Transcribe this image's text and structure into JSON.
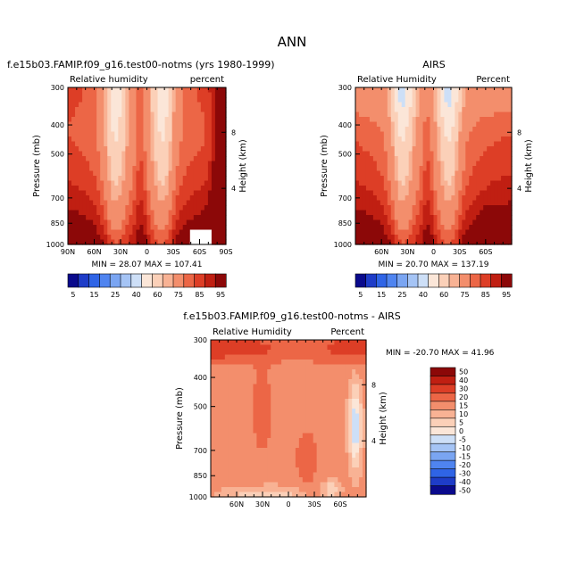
{
  "page_title": "ANN",
  "palettes": {
    "absolute": [
      "#0a0a8c",
      "#1e3cc8",
      "#2f64e6",
      "#4f84f0",
      "#7aa5f2",
      "#a5c4f5",
      "#cddff7",
      "#fbe6d8",
      "#fbd0b8",
      "#f8b294",
      "#f38e6c",
      "#ec6646",
      "#dd3e26",
      "#c01f12",
      "#8c0808"
    ],
    "diff": [
      "#0a0a8c",
      "#1e3cc8",
      "#2f64e6",
      "#4f84f0",
      "#7aa5f2",
      "#a5c4f5",
      "#cddff7",
      "#fbe6d8",
      "#fbd0b8",
      "#f8b294",
      "#f38e6c",
      "#ec6646",
      "#dd3e26",
      "#c01f12",
      "#8c0808"
    ]
  },
  "chart_data": [
    {
      "type": "heatmap",
      "title": "f.e15b03.FAMIP.f09_g16.test00-notms (yrs 1980-1999)",
      "left_label": "Relative humidity",
      "right_label": "percent",
      "ylabel": "Pressure (mb)",
      "y2label": "Height (km)",
      "ytick_labels": [
        "300",
        "400",
        "500",
        "700",
        "850",
        "1000"
      ],
      "ytick_values": [
        300,
        400,
        500,
        700,
        850,
        1000
      ],
      "y2tick_labels": [
        "8",
        "4"
      ],
      "y2tick_values": [
        8,
        4
      ],
      "xtick_labels": [
        "90N",
        "60N",
        "30N",
        "0",
        "30S",
        "60S",
        "90S"
      ],
      "xtick_values": [
        90,
        60,
        30,
        0,
        -30,
        -60,
        -90
      ],
      "xlim": [
        90,
        -90
      ],
      "ylim": [
        1000,
        300
      ],
      "yscale": "log",
      "stats": {
        "min_label": "MIN =",
        "min": "28.07",
        "max_label": "MAX =",
        "max": "107.41"
      },
      "colorbar_labels": [
        "5",
        "15",
        "25",
        "40",
        "60",
        "75",
        "85",
        "95"
      ]
    },
    {
      "type": "heatmap",
      "title": "AIRS",
      "left_label": "Relative Humidity",
      "right_label": "Percent",
      "ylabel": "Pressure (mb)",
      "y2label": "Height (km)",
      "ytick_labels": [
        "300",
        "400",
        "500",
        "700",
        "850",
        "1000"
      ],
      "ytick_values": [
        300,
        400,
        500,
        700,
        850,
        1000
      ],
      "y2tick_labels": [
        "8",
        "4"
      ],
      "y2tick_values": [
        8,
        4
      ],
      "xtick_labels": [
        "60N",
        "30N",
        "0",
        "30S",
        "60S"
      ],
      "xtick_values": [
        60,
        30,
        0,
        -30,
        -60
      ],
      "xlim": [
        90,
        -90
      ],
      "ylim": [
        1000,
        300
      ],
      "yscale": "log",
      "stats": {
        "min_label": "MIN =",
        "min": "20.70",
        "max_label": "MAX =",
        "max": "137.19"
      },
      "colorbar_labels": [
        "5",
        "15",
        "25",
        "40",
        "60",
        "75",
        "85",
        "95"
      ]
    },
    {
      "type": "heatmap",
      "title": "f.e15b03.FAMIP.f09_g16.test00-notms - AIRS",
      "left_label": "Relative Humidity",
      "right_label": "Percent",
      "ylabel": "Pressure (mb)",
      "y2label": "Height (km)",
      "ytick_labels": [
        "300",
        "400",
        "500",
        "700",
        "850",
        "1000"
      ],
      "ytick_values": [
        300,
        400,
        500,
        700,
        850,
        1000
      ],
      "y2tick_labels": [
        "8",
        "4"
      ],
      "y2tick_values": [
        8,
        4
      ],
      "xtick_labels": [
        "60N",
        "30N",
        "0",
        "30S",
        "60S"
      ],
      "xtick_values": [
        60,
        30,
        0,
        -30,
        -60
      ],
      "xlim": [
        90,
        -90
      ],
      "ylim": [
        1000,
        300
      ],
      "yscale": "log",
      "stats": {
        "min_label": "MIN =",
        "min": "-20.70",
        "max_label": "MAX =",
        "max": "41.96"
      },
      "colorbar_labels": [
        "50",
        "40",
        "30",
        "20",
        "15",
        "10",
        "5",
        "0",
        "-5",
        "-10",
        "-15",
        "-20",
        "-30",
        "-40",
        "-50"
      ]
    }
  ]
}
